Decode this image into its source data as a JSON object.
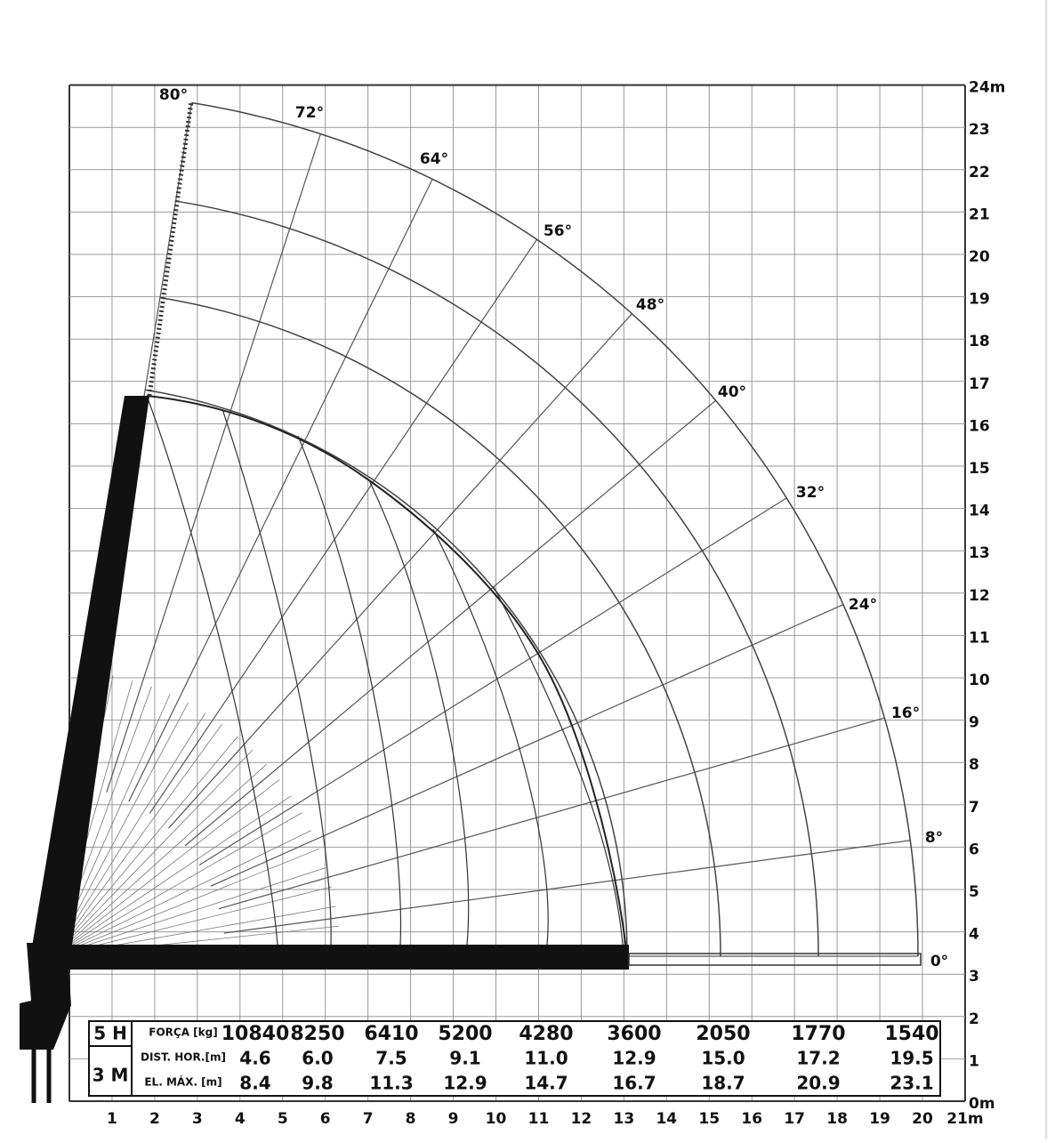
{
  "x_axis": {
    "labels": [
      "1",
      "2",
      "3",
      "4",
      "5",
      "6",
      "7",
      "8",
      "9",
      "10",
      "11",
      "12",
      "13",
      "14",
      "15",
      "16",
      "17",
      "18",
      "19",
      "20",
      "21m"
    ]
  },
  "y_axis": {
    "labels": [
      "0m",
      "1",
      "2",
      "3",
      "4",
      "5",
      "6",
      "7",
      "8",
      "9",
      "10",
      "11",
      "12",
      "13",
      "14",
      "15",
      "16",
      "17",
      "18",
      "19",
      "20",
      "21",
      "22",
      "23",
      "24m"
    ]
  },
  "angles": [
    "80°",
    "72°",
    "64°",
    "56°",
    "48°",
    "40°",
    "32°",
    "24°",
    "16°",
    "8°",
    "0°"
  ],
  "table": {
    "groups": [
      "5 H",
      "3 M"
    ],
    "rows": [
      {
        "label": "FORÇA [kg]",
        "values": [
          "10840",
          "8250",
          "6410",
          "5200",
          "4280",
          "3600",
          "2050",
          "1770",
          "1540"
        ]
      },
      {
        "label": "DIST. HOR.[m]",
        "values": [
          "4.6",
          "6.0",
          "7.5",
          "9.1",
          "11.0",
          "12.9",
          "15.0",
          "17.2",
          "19.5"
        ]
      },
      {
        "label": "EL. MÁX. [m]",
        "values": [
          "8.4",
          "9.8",
          "11.3",
          "12.9",
          "14.7",
          "16.7",
          "18.7",
          "20.9",
          "23.1"
        ]
      }
    ]
  }
}
